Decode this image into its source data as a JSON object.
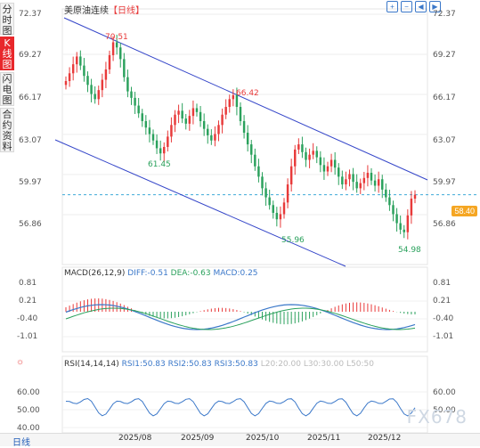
{
  "sidebar": {
    "tabs": [
      {
        "label": "分时图",
        "active": false
      },
      {
        "label": "K线图",
        "active": true
      },
      {
        "label": "闪电图",
        "active": false
      },
      {
        "label": "合约资料",
        "active": false
      }
    ]
  },
  "header": {
    "title": "美原油连续",
    "period_tag": "【日线】"
  },
  "toolbar": {
    "icons": [
      "zoom-in-icon",
      "zoom-out-icon",
      "left-arrow-icon",
      "right-arrow-icon"
    ]
  },
  "price_axis": {
    "labels": [
      "72.37",
      "69.27",
      "66.17",
      "63.07",
      "59.97",
      "56.86"
    ]
  },
  "current_price": "58.40",
  "annotations": [
    {
      "text": "70.51",
      "color": "#e83a3a"
    },
    {
      "text": "66.42",
      "color": "#e83a3a"
    },
    {
      "text": "61.45",
      "color": "#2aa15c"
    },
    {
      "text": "55.96",
      "color": "#2aa15c"
    },
    {
      "text": "54.98",
      "color": "#2aa15c"
    }
  ],
  "macd": {
    "title": "MACD(26,12,9)",
    "diff": "DIFF:-0.51",
    "dea": "DEA:-0.63",
    "macd": "MACD:0.25",
    "axis": [
      "0.81",
      "0.21",
      "-0.40",
      "-1.01"
    ]
  },
  "rsi": {
    "title": "RSI(14,14,14)",
    "rsi1": "RSI1:50.83",
    "rsi2": "RSI2:50.83",
    "rsi3": "RSI3:50.83",
    "l20": "L20:20.00",
    "l30": "L30:30.00",
    "l50": "L50:50",
    "axis": [
      "60.00",
      "50.00",
      "40.00"
    ]
  },
  "bottom": {
    "period": "日线",
    "dates": [
      "2025/08",
      "2025/09",
      "2025/10",
      "2025/11",
      "2025/12"
    ]
  },
  "watermark": "FX678",
  "colors": {
    "up": "#e83a3a",
    "down": "#2aa15c",
    "channel": "#3546c9",
    "diff_line": "#3b78c9",
    "dea_line": "#2aa15c",
    "dashed": "#3fa9d8",
    "current_tag": "#f5a623"
  },
  "chart_data": {
    "type": "candlestick",
    "title": "美原油连续",
    "ylim": [
      53.5,
      72.37
    ],
    "x": [
      "2025/08",
      "2025/09",
      "2025/10",
      "2025/11",
      "2025/12"
    ],
    "price_labels": [
      72.37,
      69.27,
      66.17,
      63.07,
      59.97,
      56.86
    ],
    "marked_highs": [
      70.51,
      66.42
    ],
    "marked_lows": [
      61.45,
      55.96,
      54.98
    ],
    "last_price": 58.4,
    "close_series": [
      67.2,
      67.8,
      68.5,
      69.1,
      68.4,
      67.6,
      66.9,
      66.2,
      65.8,
      66.5,
      67.3,
      68.1,
      69.2,
      70.2,
      69.8,
      68.9,
      67.5,
      66.4,
      65.9,
      65.3,
      64.7,
      64.1,
      63.6,
      63.1,
      62.6,
      62.0,
      61.6,
      62.1,
      62.9,
      63.8,
      64.6,
      64.9,
      64.3,
      63.9,
      64.5,
      65.1,
      64.8,
      64.1,
      63.5,
      63.0,
      62.6,
      63.1,
      63.8,
      64.6,
      65.2,
      65.8,
      66.1,
      65.2,
      64.1,
      63.2,
      62.3,
      61.5,
      60.6,
      59.8,
      58.9,
      58.2,
      57.6,
      57.0,
      56.5,
      56.9,
      57.8,
      59.2,
      60.6,
      61.9,
      62.3,
      61.7,
      61.1,
      61.5,
      61.8,
      61.3,
      60.7,
      60.2,
      60.6,
      61.1,
      60.5,
      59.8,
      59.2,
      59.6,
      60.0,
      59.4,
      58.9,
      59.3,
      59.7,
      60.1,
      59.5,
      59.1,
      59.6,
      58.8,
      58.2,
      57.6,
      56.9,
      56.2,
      55.7,
      55.5,
      56.8,
      58.1,
      58.4
    ],
    "macd_values": {
      "DIFF": -0.51,
      "DEA": -0.63,
      "MACD": 0.25
    },
    "rsi_values": {
      "RSI1": 50.83,
      "RSI2": 50.83,
      "RSI3": 50.83
    }
  }
}
